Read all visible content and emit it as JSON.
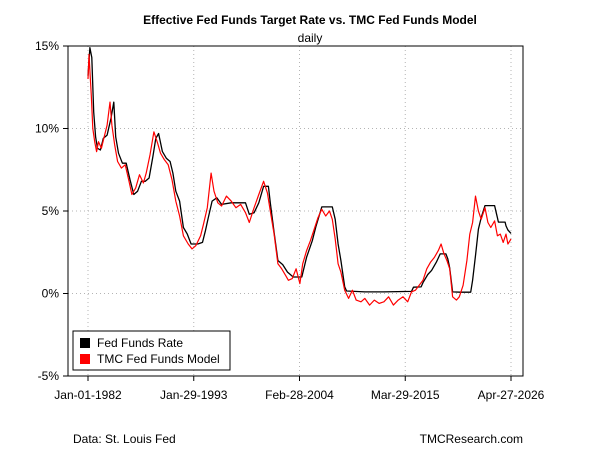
{
  "chart_data": {
    "type": "line",
    "title": "Effective Fed Funds Target Rate vs. TMC Fed Funds Model",
    "subtitle": "daily",
    "xlabel": "",
    "ylabel": "",
    "x_tick_labels": [
      "Jan-01-1982",
      "Jan-29-1993",
      "Feb-28-2004",
      "Mar-29-2015",
      "Apr-27-2026"
    ],
    "x_ticks_year": [
      1982.0,
      1993.08,
      2004.16,
      2015.24,
      2026.32
    ],
    "xlim": [
      1982.0,
      2026.32
    ],
    "y_tick_labels": [
      "15%",
      "10%",
      "5%",
      "0%",
      "-5%"
    ],
    "y_ticks": [
      15,
      10,
      5,
      0,
      -5
    ],
    "ylim": [
      -5,
      15
    ],
    "grid": true,
    "legend_position": "bottom-left",
    "source_note": "Data: St. Louis Fed",
    "credit": "TMCResearch.com",
    "series": [
      {
        "name": "Fed Funds Rate",
        "color": "#000000",
        "points": [
          [
            1982.0,
            13.2
          ],
          [
            1982.2,
            14.9
          ],
          [
            1982.4,
            14.3
          ],
          [
            1982.6,
            11.0
          ],
          [
            1982.8,
            9.5
          ],
          [
            1983.0,
            8.8
          ],
          [
            1983.3,
            8.7
          ],
          [
            1983.6,
            9.4
          ],
          [
            1984.0,
            9.6
          ],
          [
            1984.4,
            10.6
          ],
          [
            1984.7,
            11.6
          ],
          [
            1984.9,
            9.5
          ],
          [
            1985.2,
            8.5
          ],
          [
            1985.6,
            7.9
          ],
          [
            1986.0,
            7.9
          ],
          [
            1986.4,
            6.9
          ],
          [
            1986.8,
            6.0
          ],
          [
            1987.2,
            6.2
          ],
          [
            1987.6,
            6.8
          ],
          [
            1988.0,
            6.8
          ],
          [
            1988.4,
            7.0
          ],
          [
            1988.8,
            8.3
          ],
          [
            1989.1,
            9.4
          ],
          [
            1989.4,
            9.7
          ],
          [
            1989.8,
            8.6
          ],
          [
            1990.2,
            8.2
          ],
          [
            1990.6,
            8.0
          ],
          [
            1990.9,
            7.3
          ],
          [
            1991.2,
            6.2
          ],
          [
            1991.6,
            5.6
          ],
          [
            1992.0,
            4.0
          ],
          [
            1992.4,
            3.6
          ],
          [
            1992.8,
            3.0
          ],
          [
            1993.5,
            3.0
          ],
          [
            1994.0,
            3.1
          ],
          [
            1994.3,
            3.8
          ],
          [
            1994.6,
            4.6
          ],
          [
            1995.0,
            5.6
          ],
          [
            1995.5,
            5.8
          ],
          [
            1996.0,
            5.4
          ],
          [
            1997.0,
            5.5
          ],
          [
            1998.5,
            5.5
          ],
          [
            1998.9,
            4.8
          ],
          [
            1999.4,
            4.9
          ],
          [
            1999.9,
            5.5
          ],
          [
            2000.4,
            6.5
          ],
          [
            2000.9,
            6.5
          ],
          [
            2001.1,
            5.5
          ],
          [
            2001.5,
            3.7
          ],
          [
            2001.9,
            2.0
          ],
          [
            2002.4,
            1.75
          ],
          [
            2002.9,
            1.3
          ],
          [
            2003.5,
            1.0
          ],
          [
            2004.4,
            1.0
          ],
          [
            2004.9,
            2.2
          ],
          [
            2005.5,
            3.2
          ],
          [
            2005.9,
            4.1
          ],
          [
            2006.5,
            5.25
          ],
          [
            2007.6,
            5.25
          ],
          [
            2007.9,
            4.5
          ],
          [
            2008.2,
            3.0
          ],
          [
            2008.5,
            2.0
          ],
          [
            2008.9,
            0.4
          ],
          [
            2009.1,
            0.15
          ],
          [
            2011.0,
            0.1
          ],
          [
            2013.0,
            0.1
          ],
          [
            2015.9,
            0.13
          ],
          [
            2016.1,
            0.38
          ],
          [
            2016.9,
            0.4
          ],
          [
            2017.1,
            0.66
          ],
          [
            2017.6,
            1.15
          ],
          [
            2018.0,
            1.4
          ],
          [
            2018.5,
            1.9
          ],
          [
            2018.9,
            2.4
          ],
          [
            2019.5,
            2.4
          ],
          [
            2019.7,
            2.1
          ],
          [
            2019.9,
            1.55
          ],
          [
            2020.2,
            0.1
          ],
          [
            2021.0,
            0.08
          ],
          [
            2022.1,
            0.08
          ],
          [
            2022.3,
            0.8
          ],
          [
            2022.6,
            2.3
          ],
          [
            2022.9,
            3.9
          ],
          [
            2023.2,
            4.6
          ],
          [
            2023.6,
            5.33
          ],
          [
            2024.6,
            5.33
          ],
          [
            2024.8,
            4.83
          ],
          [
            2024.9,
            4.6
          ],
          [
            2025.0,
            4.33
          ],
          [
            2025.7,
            4.33
          ],
          [
            2025.8,
            4.1
          ],
          [
            2026.0,
            3.85
          ],
          [
            2026.32,
            3.64
          ]
        ]
      },
      {
        "name": "TMC Fed Funds Model",
        "color": "#ff0000",
        "points": [
          [
            1982.0,
            13.0
          ],
          [
            1982.1,
            14.5
          ],
          [
            1982.2,
            13.5
          ],
          [
            1982.35,
            12.0
          ],
          [
            1982.5,
            10.0
          ],
          [
            1982.7,
            9.2
          ],
          [
            1982.9,
            8.6
          ],
          [
            1983.1,
            9.2
          ],
          [
            1983.4,
            8.8
          ],
          [
            1983.7,
            9.5
          ],
          [
            1984.0,
            10.2
          ],
          [
            1984.3,
            11.6
          ],
          [
            1984.5,
            10.2
          ],
          [
            1984.8,
            9.0
          ],
          [
            1985.1,
            8.0
          ],
          [
            1985.5,
            7.6
          ],
          [
            1985.9,
            7.8
          ],
          [
            1986.3,
            6.8
          ],
          [
            1986.6,
            6.0
          ],
          [
            1987.0,
            6.4
          ],
          [
            1987.4,
            7.2
          ],
          [
            1987.8,
            6.7
          ],
          [
            1988.1,
            7.3
          ],
          [
            1988.5,
            8.4
          ],
          [
            1988.9,
            9.8
          ],
          [
            1989.3,
            9.1
          ],
          [
            1989.6,
            8.5
          ],
          [
            1990.0,
            8.1
          ],
          [
            1990.4,
            7.8
          ],
          [
            1990.8,
            6.9
          ],
          [
            1991.2,
            5.6
          ],
          [
            1991.6,
            4.7
          ],
          [
            1992.0,
            3.5
          ],
          [
            1992.5,
            3.0
          ],
          [
            1992.9,
            2.7
          ],
          [
            1993.3,
            2.9
          ],
          [
            1993.8,
            3.5
          ],
          [
            1994.1,
            4.2
          ],
          [
            1994.5,
            5.2
          ],
          [
            1994.9,
            7.3
          ],
          [
            1995.2,
            6.2
          ],
          [
            1995.6,
            5.5
          ],
          [
            1996.0,
            5.3
          ],
          [
            1996.5,
            5.9
          ],
          [
            1997.0,
            5.6
          ],
          [
            1997.5,
            5.2
          ],
          [
            1998.0,
            5.4
          ],
          [
            1998.5,
            4.9
          ],
          [
            1998.9,
            4.3
          ],
          [
            1999.4,
            5.2
          ],
          [
            1999.9,
            6.0
          ],
          [
            2000.4,
            6.8
          ],
          [
            2000.8,
            6.1
          ],
          [
            2001.1,
            5.0
          ],
          [
            2001.5,
            3.6
          ],
          [
            2001.9,
            1.8
          ],
          [
            2002.3,
            1.5
          ],
          [
            2002.7,
            1.1
          ],
          [
            2003.0,
            0.8
          ],
          [
            2003.4,
            0.9
          ],
          [
            2003.8,
            1.5
          ],
          [
            2004.2,
            0.6
          ],
          [
            2004.5,
            1.8
          ],
          [
            2004.9,
            2.6
          ],
          [
            2005.3,
            3.2
          ],
          [
            2005.7,
            3.9
          ],
          [
            2006.1,
            4.6
          ],
          [
            2006.5,
            5.1
          ],
          [
            2006.9,
            4.7
          ],
          [
            2007.3,
            5.0
          ],
          [
            2007.6,
            4.5
          ],
          [
            2007.9,
            3.3
          ],
          [
            2008.2,
            1.8
          ],
          [
            2008.5,
            1.3
          ],
          [
            2008.9,
            0.2
          ],
          [
            2009.3,
            -0.3
          ],
          [
            2009.7,
            0.2
          ],
          [
            2010.1,
            -0.4
          ],
          [
            2010.6,
            -0.5
          ],
          [
            2011.0,
            -0.3
          ],
          [
            2011.5,
            -0.7
          ],
          [
            2012.0,
            -0.4
          ],
          [
            2012.5,
            -0.6
          ],
          [
            2013.0,
            -0.5
          ],
          [
            2013.5,
            -0.2
          ],
          [
            2014.0,
            -0.7
          ],
          [
            2014.5,
            -0.4
          ],
          [
            2015.0,
            -0.2
          ],
          [
            2015.5,
            -0.5
          ],
          [
            2015.9,
            0.1
          ],
          [
            2016.3,
            0.2
          ],
          [
            2016.7,
            0.5
          ],
          [
            2017.1,
            0.8
          ],
          [
            2017.5,
            1.5
          ],
          [
            2017.9,
            1.9
          ],
          [
            2018.3,
            2.2
          ],
          [
            2018.7,
            2.6
          ],
          [
            2019.0,
            3.0
          ],
          [
            2019.3,
            2.4
          ],
          [
            2019.6,
            2.0
          ],
          [
            2019.9,
            1.5
          ],
          [
            2020.2,
            -0.2
          ],
          [
            2020.6,
            -0.4
          ],
          [
            2020.9,
            -0.2
          ],
          [
            2021.3,
            0.5
          ],
          [
            2021.7,
            2.0
          ],
          [
            2022.0,
            3.6
          ],
          [
            2022.3,
            4.3
          ],
          [
            2022.6,
            5.9
          ],
          [
            2022.9,
            5.0
          ],
          [
            2023.2,
            4.5
          ],
          [
            2023.6,
            5.2
          ],
          [
            2023.9,
            4.3
          ],
          [
            2024.2,
            4.0
          ],
          [
            2024.6,
            4.4
          ],
          [
            2024.9,
            3.5
          ],
          [
            2025.2,
            3.6
          ],
          [
            2025.5,
            3.1
          ],
          [
            2025.8,
            3.6
          ],
          [
            2026.0,
            3.0
          ],
          [
            2026.32,
            3.3
          ]
        ]
      }
    ]
  }
}
